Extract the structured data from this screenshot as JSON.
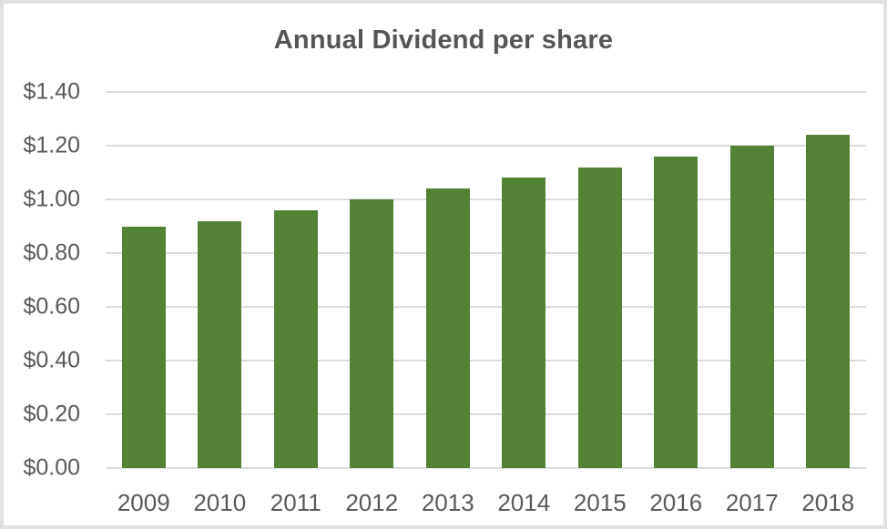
{
  "chart_data": {
    "type": "bar",
    "title": "Annual Dividend per share",
    "categories": [
      "2009",
      "2010",
      "2011",
      "2012",
      "2013",
      "2014",
      "2015",
      "2016",
      "2017",
      "2018"
    ],
    "values": [
      0.9,
      0.92,
      0.96,
      1.0,
      1.04,
      1.08,
      1.12,
      1.16,
      1.2,
      1.24
    ],
    "xlabel": "",
    "ylabel": "",
    "ylim": [
      0,
      1.4
    ],
    "ytick_step": 0.2,
    "ytick_labels": [
      "$0.00",
      "$0.20",
      "$0.40",
      "$0.60",
      "$0.80",
      "$1.00",
      "$1.20",
      "$1.40"
    ],
    "grid": true,
    "legend": false,
    "colors": {
      "bar": "#538135",
      "gridline": "#dcdcdc",
      "axis_text": "#595959",
      "title_text": "#555555",
      "frame_border": "#e0e0e0",
      "background": "#ffffff"
    }
  }
}
